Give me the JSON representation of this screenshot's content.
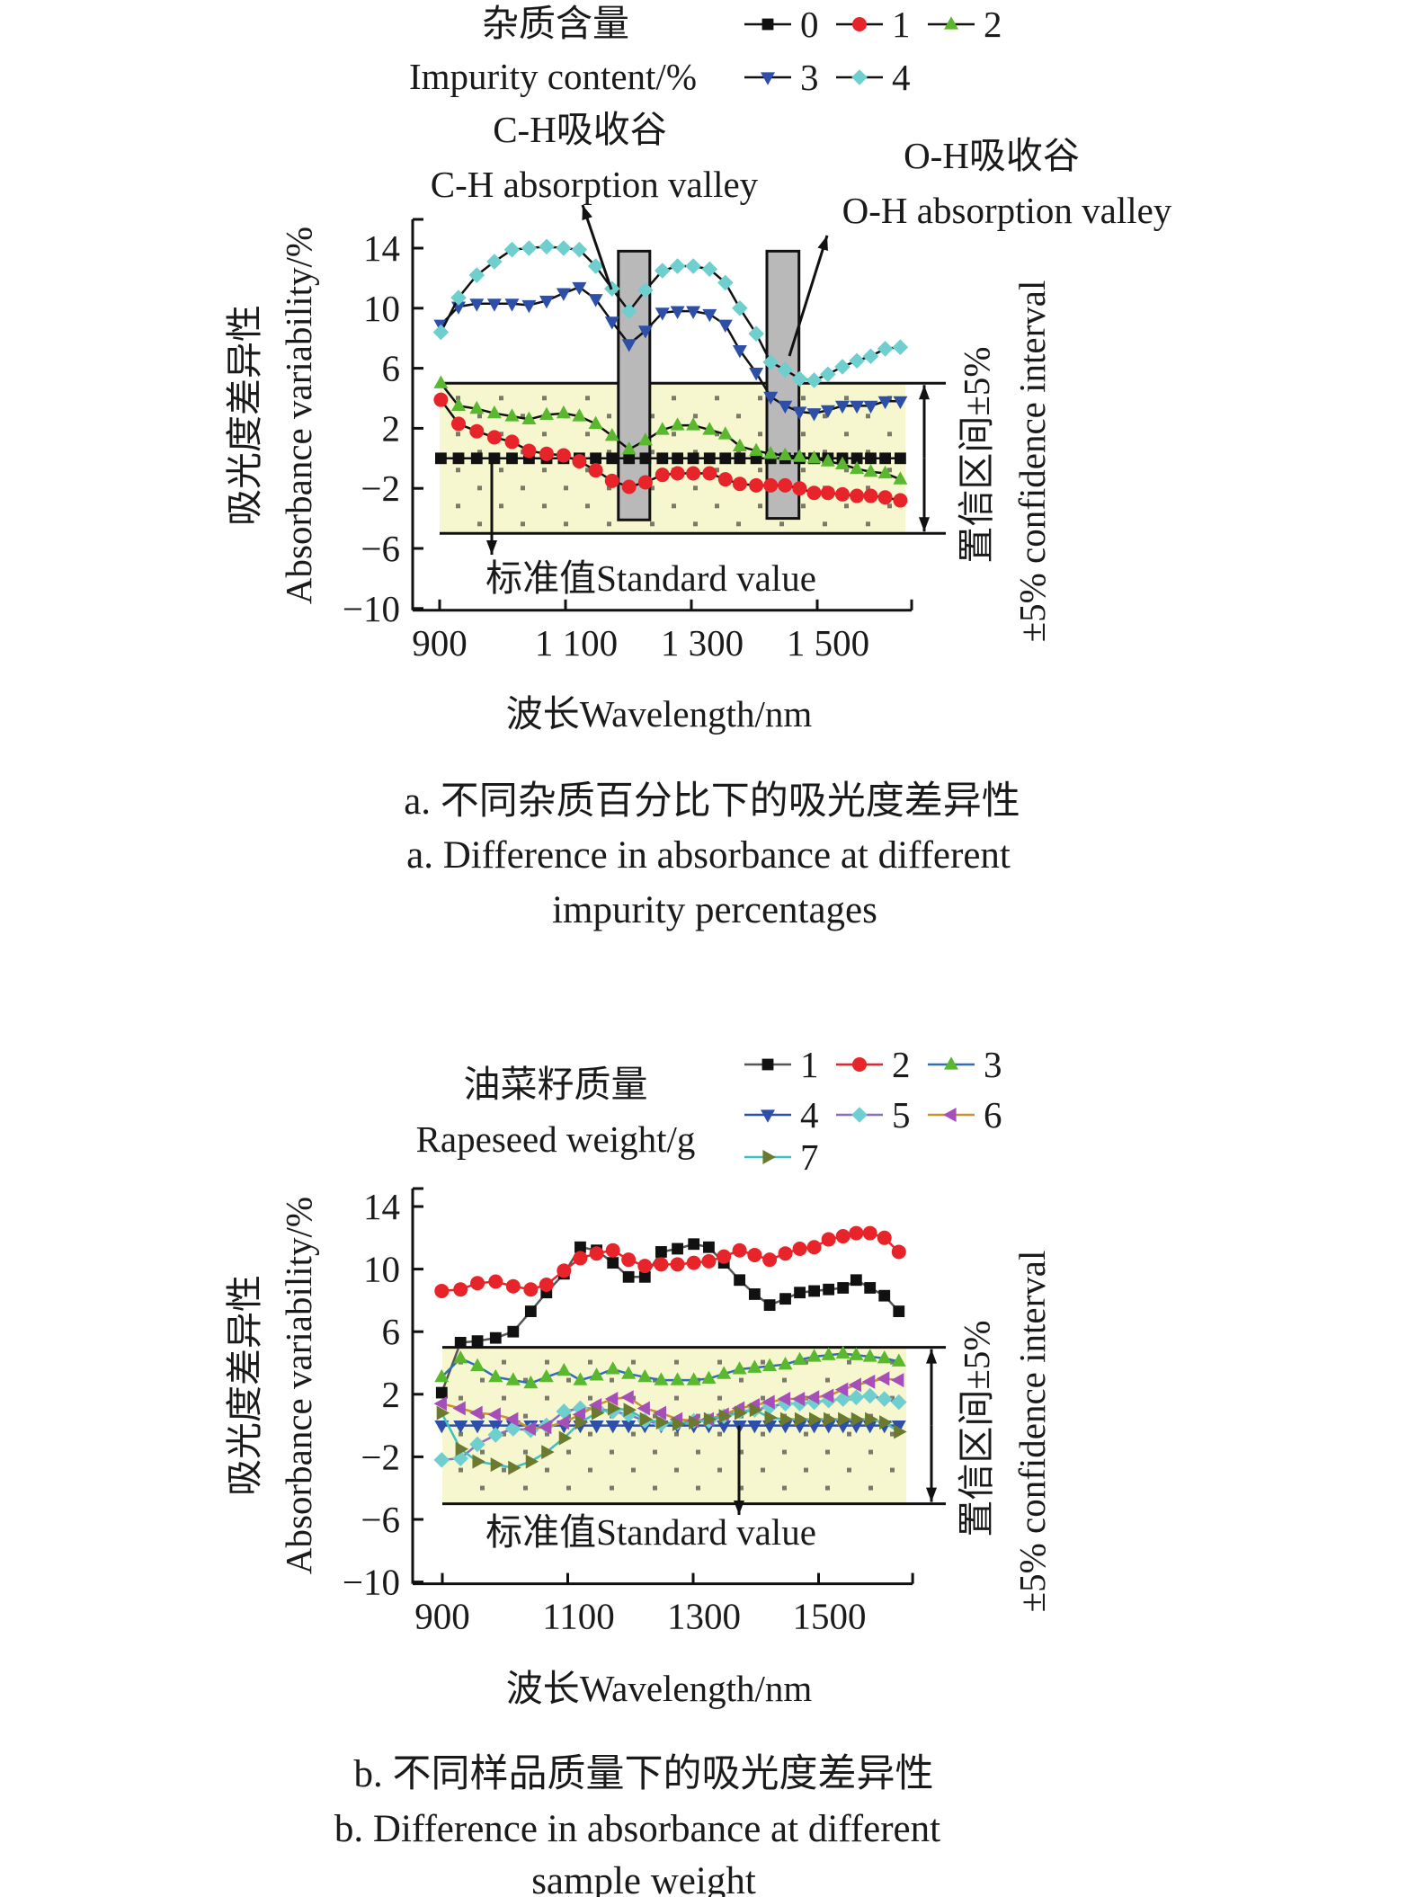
{
  "chart_data": [
    {
      "type": "line",
      "legend_title_cn": "杂质含量",
      "legend_title_en": "Impurity content/%",
      "xlabel": "波长Wavelength/nm",
      "ylabel_cn": "吸光度差异性",
      "ylabel": "Absorbance variability/%",
      "xlim": [
        900,
        1650
      ],
      "ylim": [
        -10,
        14
      ],
      "xticks": [
        900,
        1100,
        1300,
        1500
      ],
      "xtick_labels": [
        "900",
        "1 100",
        "1 300",
        "1 500"
      ],
      "yticks": [
        14,
        10,
        6,
        2,
        -2,
        -6,
        -10
      ],
      "ytick_labels": [
        "14",
        "10",
        "6",
        "2",
        "−2",
        "−6",
        "−10"
      ],
      "grid": false,
      "legend_placement": "top-right",
      "confidence_band": [
        -5,
        5
      ],
      "confidence_label_cn": "置信区间±5%",
      "confidence_label_en": "±5% confidence interval",
      "standard_label": "标准值Standard value",
      "annotations": {
        "ch_cn": "C-H吸收谷",
        "ch_en": "C-H absorption valley",
        "oh_cn": "O-H吸收谷",
        "oh_en": "O-H absorption valley"
      },
      "absorption_valleys": [
        {
          "name": "C-H",
          "x": [
            1184,
            1234
          ],
          "y": [
            -4.1,
            13.8
          ]
        },
        {
          "name": "O-H",
          "x": [
            1420,
            1471
          ],
          "y": [
            -4.0,
            13.8
          ]
        }
      ],
      "caption_cn": "a. 不同杂质百分比下的吸光度差异性",
      "caption_en_1": "a. Difference in absorbance at different",
      "caption_en_2": "impurity percentages",
      "x": [
        902,
        930,
        959,
        987,
        1015,
        1042,
        1070,
        1097,
        1122,
        1148,
        1174,
        1201,
        1227,
        1254,
        1278,
        1303,
        1329,
        1354,
        1377,
        1403,
        1426,
        1449,
        1472,
        1495,
        1517,
        1540,
        1563,
        1585,
        1608,
        1632
      ],
      "series": [
        {
          "name": "0",
          "color": "#111111",
          "line": "#111111",
          "marker": "square",
          "values": [
            0,
            0,
            0,
            0,
            0,
            0,
            0,
            0,
            0,
            0,
            0,
            0,
            0,
            0,
            0,
            0,
            0,
            0,
            0,
            0,
            0,
            0,
            0,
            0,
            0,
            0,
            0,
            0,
            0,
            0
          ]
        },
        {
          "name": "1",
          "color": "#e8242b",
          "line": "#111111",
          "marker": "circle",
          "values": [
            3.9,
            2.3,
            1.8,
            1.4,
            1.1,
            0.5,
            0.3,
            0.2,
            -0.2,
            -0.8,
            -1.5,
            -1.9,
            -1.6,
            -1.1,
            -1.0,
            -1.0,
            -1.0,
            -1.4,
            -1.7,
            -1.8,
            -1.8,
            -1.8,
            -2.0,
            -2.3,
            -2.3,
            -2.4,
            -2.5,
            -2.5,
            -2.6,
            -2.8
          ]
        },
        {
          "name": "2",
          "color": "#5ab82e",
          "line": "#111111",
          "marker": "triangle-up",
          "values": [
            5.0,
            3.5,
            3.3,
            3.0,
            2.8,
            2.6,
            2.9,
            3.0,
            2.8,
            2.3,
            1.5,
            0.6,
            1.2,
            1.9,
            2.2,
            2.2,
            1.9,
            1.6,
            0.8,
            0.5,
            0.3,
            0.2,
            0.1,
            0.0,
            -0.2,
            -0.4,
            -0.7,
            -0.9,
            -1.0,
            -1.4
          ]
        },
        {
          "name": "3",
          "color": "#2e4fa8",
          "line": "#111111",
          "marker": "triangle-down",
          "values": [
            8.9,
            10.1,
            10.3,
            10.3,
            10.3,
            10.2,
            10.5,
            11.0,
            11.4,
            10.6,
            9.1,
            7.6,
            8.5,
            9.7,
            9.8,
            9.8,
            9.6,
            8.9,
            7.2,
            5.7,
            4.1,
            3.5,
            3.1,
            3.0,
            3.2,
            3.5,
            3.5,
            3.5,
            3.8,
            3.8
          ]
        },
        {
          "name": "4",
          "color": "#6fcfcf",
          "line": "#111111",
          "marker": "diamond",
          "values": [
            8.4,
            10.7,
            12.2,
            13.1,
            13.9,
            14.0,
            14.1,
            14.0,
            13.9,
            12.8,
            11.3,
            9.8,
            11.2,
            12.5,
            12.8,
            12.8,
            12.6,
            11.7,
            10.0,
            8.3,
            6.4,
            5.9,
            5.3,
            5.2,
            5.6,
            6.1,
            6.5,
            6.8,
            7.3,
            7.4
          ]
        }
      ]
    },
    {
      "type": "line",
      "legend_title_cn": "油菜籽质量",
      "legend_title_en": "Rapeseed weight/g",
      "xlabel": "波长Wavelength/nm",
      "ylabel_cn": "吸光度差异性",
      "ylabel": "Absorbance variability/%",
      "xlim": [
        900,
        1650
      ],
      "ylim": [
        -10,
        14
      ],
      "xticks": [
        900,
        1100,
        1300,
        1500
      ],
      "xtick_labels": [
        "900",
        "1100",
        "1300",
        "1500"
      ],
      "yticks": [
        14,
        10,
        6,
        2,
        -2,
        -6,
        -10
      ],
      "ytick_labels": [
        "14",
        "10",
        "6",
        "2",
        "−2",
        "−6",
        "−10"
      ],
      "grid": false,
      "legend_placement": "top-right",
      "confidence_band": [
        -5,
        5
      ],
      "confidence_label_cn": "置信区间±5%",
      "confidence_label_en": "±5% confidence interval",
      "standard_label": "标准值Standard value",
      "caption_cn": "b. 不同样品质量下的吸光度差异性",
      "caption_en_1": "b. Difference in absorbance at different",
      "caption_en_2": "sample weight",
      "x": [
        899,
        929,
        956,
        985,
        1013,
        1041,
        1066,
        1094,
        1120,
        1146,
        1172,
        1197,
        1223,
        1249,
        1275,
        1301,
        1325,
        1349,
        1374,
        1398,
        1422,
        1447,
        1470,
        1493,
        1516,
        1539,
        1560,
        1582,
        1605,
        1628
      ],
      "series": [
        {
          "name": "1",
          "color": "#111111",
          "line": "#555555",
          "marker": "square",
          "values": [
            2.1,
            5.3,
            5.4,
            5.6,
            6.0,
            7.3,
            8.5,
            9.7,
            11.4,
            11.2,
            10.4,
            9.5,
            9.5,
            11.1,
            11.3,
            11.6,
            11.4,
            10.4,
            9.3,
            8.4,
            7.7,
            8.1,
            8.5,
            8.6,
            8.7,
            8.8,
            9.3,
            8.8,
            8.3,
            7.3
          ]
        },
        {
          "name": "2",
          "color": "#e8242b",
          "line": "#e8242b",
          "marker": "circle",
          "values": [
            8.6,
            8.7,
            9.1,
            9.2,
            8.9,
            8.7,
            9.0,
            9.9,
            10.7,
            11.0,
            11.2,
            10.6,
            10.2,
            10.3,
            10.3,
            10.4,
            10.5,
            10.8,
            11.2,
            10.9,
            10.6,
            11.0,
            11.3,
            11.4,
            11.9,
            12.1,
            12.3,
            12.3,
            12.0,
            11.1
          ]
        },
        {
          "name": "3",
          "color": "#5ab82e",
          "line": "#2e6fb8",
          "marker": "triangle-up",
          "values": [
            3.1,
            4.3,
            3.8,
            3.1,
            2.9,
            2.7,
            3.1,
            3.5,
            2.9,
            3.2,
            3.6,
            3.3,
            3.1,
            2.9,
            2.9,
            2.9,
            3.0,
            3.3,
            3.6,
            3.7,
            3.8,
            3.9,
            4.2,
            4.4,
            4.5,
            4.6,
            4.5,
            4.4,
            4.3,
            4.1
          ]
        },
        {
          "name": "4",
          "color": "#2e4fa8",
          "line": "#2e4fa8",
          "marker": "triangle-down",
          "values": [
            0,
            0,
            0,
            0,
            0,
            0,
            0,
            0,
            0,
            0,
            0,
            0,
            0,
            0,
            0,
            0,
            0,
            0,
            0,
            0,
            0,
            0,
            0,
            0,
            0,
            0,
            0,
            0,
            0,
            0
          ]
        },
        {
          "name": "5",
          "color": "#6fcfcf",
          "line": "#8a6fc0",
          "marker": "diamond",
          "values": [
            -2.2,
            -2.1,
            -1.2,
            -0.6,
            -0.2,
            -0.3,
            0.0,
            0.9,
            1.1,
            1.1,
            0.9,
            0.7,
            0.3,
            0.1,
            0.2,
            0.3,
            0.3,
            0.6,
            0.9,
            1.0,
            1.2,
            1.4,
            1.4,
            1.5,
            1.6,
            1.7,
            1.8,
            1.9,
            1.7,
            1.5
          ]
        },
        {
          "name": "6",
          "color": "#a64fb8",
          "line": "#c8922e",
          "marker": "triangle-left",
          "values": [
            1.4,
            1.1,
            0.8,
            0.7,
            0.4,
            -0.2,
            -0.1,
            0.2,
            0.7,
            1.3,
            1.7,
            1.8,
            1.1,
            0.8,
            0.4,
            0.3,
            0.4,
            0.7,
            1.1,
            1.3,
            1.5,
            1.7,
            1.7,
            1.8,
            1.9,
            2.3,
            2.6,
            2.8,
            3.0,
            2.9
          ]
        },
        {
          "name": "7",
          "color": "#6b7a2e",
          "line": "#3fbfbf",
          "marker": "triangle-right",
          "values": [
            0.8,
            -1.5,
            -2.3,
            -2.5,
            -2.7,
            -2.3,
            -1.7,
            -0.8,
            0.2,
            0.8,
            1.1,
            1.0,
            0.4,
            0.2,
            0.1,
            0.2,
            0.4,
            0.6,
            0.8,
            1.0,
            0.5,
            0.4,
            0.4,
            0.4,
            0.4,
            0.4,
            0.4,
            0.4,
            0.2,
            -0.4
          ]
        }
      ]
    }
  ],
  "colors": {
    "band": "#f6f6cf",
    "band_dot": "#7a7a6a",
    "valley_bar": "#b9b9b9"
  }
}
